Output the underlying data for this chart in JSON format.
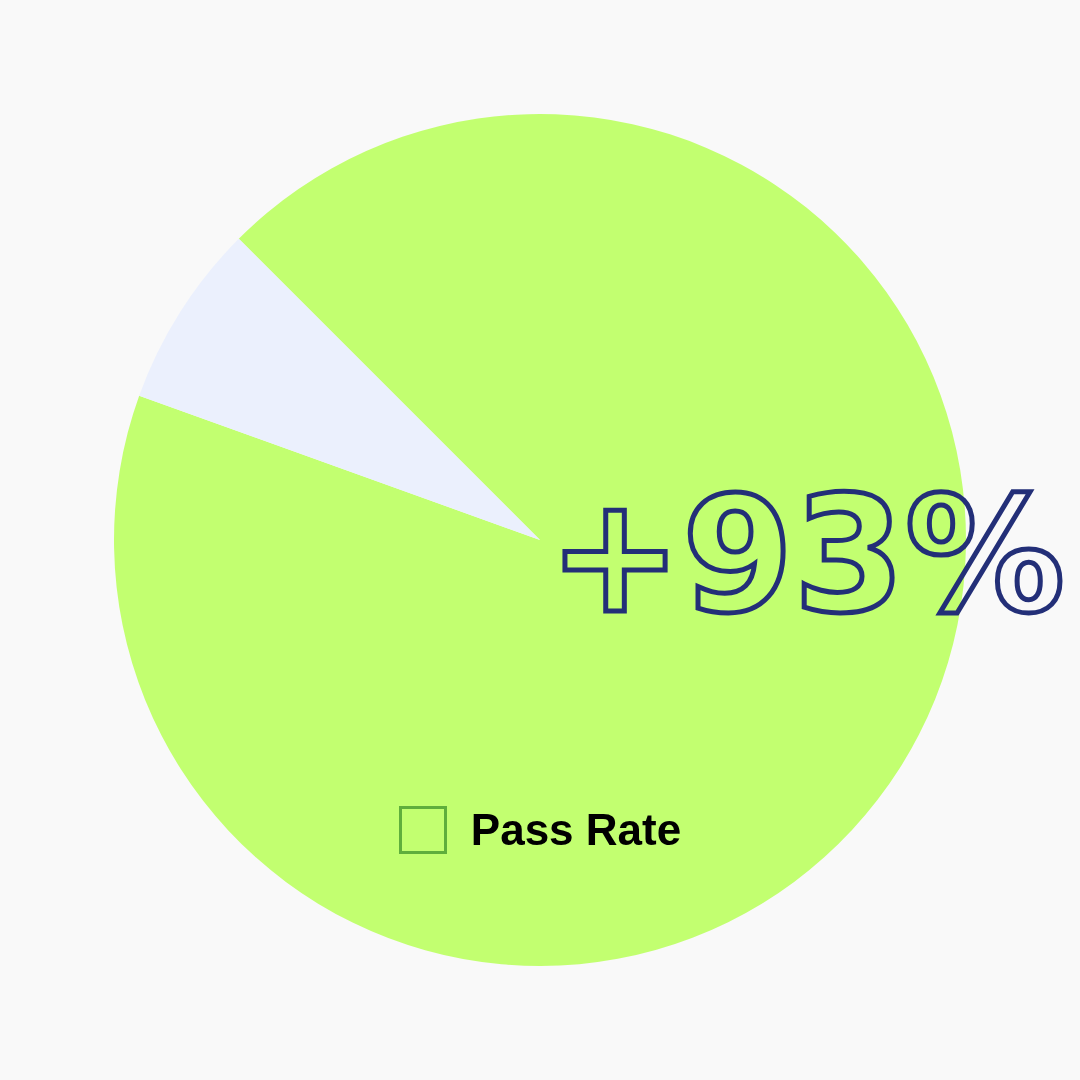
{
  "chart_data": {
    "type": "pie",
    "categories": [
      "Pass Rate",
      null
    ],
    "values": [
      93,
      7
    ],
    "colors": [
      "#c2ff70",
      "#ebf0fd"
    ],
    "legend": "bottom",
    "annotations": [
      "+93%"
    ]
  }
}
